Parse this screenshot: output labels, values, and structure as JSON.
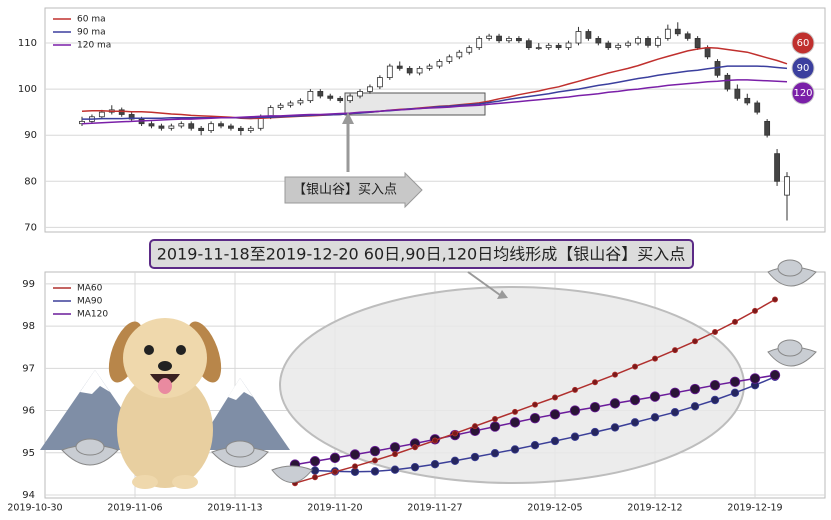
{
  "chart_data": [
    {
      "type": "candlestick",
      "annotation": "【银山谷】买入点",
      "ylim": [
        69,
        117.6
      ],
      "yticks": [
        70,
        80,
        90,
        100,
        110
      ],
      "grid": true,
      "legend": "upper left",
      "candles": [
        [
          92.5,
          94,
          92,
          93
        ],
        [
          93,
          94.5,
          92.5,
          94
        ],
        [
          94,
          95.5,
          93.5,
          95
        ],
        [
          95,
          96.5,
          94.5,
          95.5
        ],
        [
          95.5,
          96,
          94,
          94.5
        ],
        [
          94.5,
          95,
          93,
          93.5
        ],
        [
          93.5,
          94,
          92,
          92.5
        ],
        [
          92.5,
          93,
          91.5,
          92
        ],
        [
          92,
          92.5,
          91,
          91.5
        ],
        [
          91.5,
          92.5,
          91,
          92
        ],
        [
          92,
          93,
          91.5,
          92.5
        ],
        [
          92.5,
          93,
          91,
          91.5
        ],
        [
          91.5,
          92,
          90,
          91
        ],
        [
          91,
          93,
          90.5,
          92.5
        ],
        [
          92.5,
          93,
          91.5,
          92
        ],
        [
          92,
          92.5,
          91,
          91.5
        ],
        [
          91.5,
          92,
          90,
          91
        ],
        [
          91,
          92,
          90.5,
          91.5
        ],
        [
          91.5,
          94.5,
          91,
          94
        ],
        [
          94,
          96.5,
          93.5,
          96
        ],
        [
          96,
          97,
          95.5,
          96.5
        ],
        [
          96.5,
          97.5,
          96,
          97
        ],
        [
          97,
          98,
          96.5,
          97.5
        ],
        [
          97.5,
          100,
          97,
          99.5
        ],
        [
          99.5,
          100,
          98,
          98.5
        ],
        [
          98.5,
          99,
          97.5,
          98
        ],
        [
          98,
          98.5,
          97,
          97.5
        ],
        [
          97.5,
          99,
          97,
          98.5
        ],
        [
          98.5,
          100,
          98,
          99.5
        ],
        [
          99.5,
          101,
          99,
          100.5
        ],
        [
          100.5,
          103,
          100,
          102.5
        ],
        [
          102.5,
          105.5,
          102,
          105
        ],
        [
          105,
          106,
          104,
          104.5
        ],
        [
          104.5,
          105,
          103,
          103.5
        ],
        [
          103.5,
          105,
          103,
          104.5
        ],
        [
          104.5,
          105.5,
          104,
          105
        ],
        [
          105,
          106.5,
          104.5,
          106
        ],
        [
          106,
          107.5,
          105.5,
          107
        ],
        [
          107,
          108.5,
          106.5,
          108
        ],
        [
          108,
          109.5,
          107.5,
          109
        ],
        [
          109,
          111.5,
          108.5,
          111
        ],
        [
          111,
          112,
          110.5,
          111.5
        ],
        [
          111.5,
          112,
          110,
          110.5
        ],
        [
          110.5,
          111.5,
          110,
          111
        ],
        [
          111,
          111.5,
          110,
          110.5
        ],
        [
          110.5,
          111,
          108.5,
          109
        ],
        [
          109,
          110,
          108.5,
          109
        ],
        [
          109,
          110,
          108.5,
          109.5
        ],
        [
          109.5,
          110,
          108.5,
          109
        ],
        [
          109,
          110.5,
          108.5,
          110
        ],
        [
          110,
          113.5,
          109.5,
          112.5
        ],
        [
          112.5,
          113,
          110.5,
          111
        ],
        [
          111,
          111.5,
          109.5,
          110
        ],
        [
          110,
          110.5,
          108.5,
          109
        ],
        [
          109,
          110,
          108.5,
          109.5
        ],
        [
          109.5,
          110.5,
          109,
          110
        ],
        [
          110,
          111.5,
          109.5,
          111
        ],
        [
          111,
          111.5,
          109,
          109.5
        ],
        [
          109.5,
          111.5,
          109,
          111
        ],
        [
          111,
          114,
          110.5,
          113
        ],
        [
          113,
          114.5,
          111.5,
          112
        ],
        [
          112,
          112.5,
          110.5,
          111
        ],
        [
          111,
          111.5,
          108.5,
          109
        ],
        [
          109,
          109.5,
          106.5,
          107
        ],
        [
          106,
          106.5,
          102.5,
          103
        ],
        [
          103,
          103.5,
          99.5,
          100
        ],
        [
          100,
          101,
          97.5,
          98
        ],
        [
          98,
          99,
          96.5,
          97
        ],
        [
          97,
          97.5,
          94.5,
          95
        ],
        [
          93,
          93.5,
          89.5,
          90
        ],
        [
          86,
          87,
          79,
          80
        ],
        [
          77,
          82,
          71.5,
          81
        ]
      ],
      "series": [
        {
          "name": "60 ma",
          "tag": "60",
          "color": "#c0302e",
          "values": [
            95.2,
            95.3,
            95.3,
            95.2,
            95.2,
            95.1,
            95.1,
            95.0,
            94.8,
            94.6,
            94.5,
            94.3,
            94.2,
            94.1,
            94.0,
            93.9,
            93.7,
            93.6,
            93.7,
            93.8,
            93.9,
            94.0,
            94.1,
            94.2,
            94.3,
            94.4,
            94.5,
            94.7,
            94.9,
            95.0,
            95.2,
            95.4,
            95.6,
            95.7,
            95.9,
            96.1,
            96.3,
            96.4,
            96.6,
            96.8,
            97.0,
            97.4,
            97.9,
            98.3,
            98.8,
            99.2,
            99.6,
            100.1,
            100.5,
            101.1,
            101.7,
            102.3,
            102.9,
            103.5,
            104.0,
            104.5,
            105.1,
            105.8,
            106.5,
            107.1,
            107.7,
            108.3,
            108.7,
            109.0,
            108.9,
            108.6,
            108.3,
            108.0,
            107.4,
            106.8,
            106.2,
            105.5
          ]
        },
        {
          "name": "90 ma",
          "tag": "90",
          "color": "#3b3f9e",
          "values": [
            93.5,
            93.5,
            93.6,
            93.6,
            93.6,
            93.7,
            93.7,
            93.7,
            93.7,
            93.8,
            93.8,
            93.8,
            93.8,
            93.8,
            93.8,
            93.8,
            93.8,
            93.8,
            93.9,
            93.9,
            94.0,
            94.1,
            94.2,
            94.3,
            94.4,
            94.4,
            94.5,
            94.7,
            94.8,
            95.0,
            95.2,
            95.3,
            95.5,
            95.7,
            95.8,
            96.0,
            96.2,
            96.3,
            96.5,
            96.6,
            96.8,
            97.1,
            97.4,
            97.8,
            98.1,
            98.4,
            98.7,
            99.0,
            99.4,
            99.7,
            100.0,
            100.4,
            100.8,
            101.1,
            101.5,
            101.9,
            102.3,
            102.6,
            103.0,
            103.3,
            103.6,
            103.9,
            104.1,
            104.4,
            104.7,
            105.0,
            105.0,
            105.0,
            105.0,
            104.9,
            104.7,
            104.5
          ]
        },
        {
          "name": "120 ma",
          "tag": "120",
          "color": "#7a1fa8",
          "values": [
            92.5,
            92.6,
            92.7,
            92.8,
            92.9,
            93.0,
            93.1,
            93.2,
            93.3,
            93.4,
            93.5,
            93.5,
            93.6,
            93.7,
            93.8,
            93.8,
            93.9,
            94.0,
            94.1,
            94.2,
            94.2,
            94.3,
            94.4,
            94.5,
            94.5,
            94.6,
            94.7,
            94.8,
            95.0,
            95.1,
            95.2,
            95.4,
            95.5,
            95.6,
            95.8,
            95.9,
            96.0,
            96.1,
            96.3,
            96.4,
            96.5,
            96.7,
            96.9,
            97.1,
            97.3,
            97.5,
            97.7,
            97.9,
            98.1,
            98.3,
            98.6,
            98.8,
            99.0,
            99.3,
            99.5,
            99.8,
            100.0,
            100.3,
            100.5,
            100.8,
            101.0,
            101.2,
            101.4,
            101.6,
            101.7,
            101.9,
            102.0,
            102.0,
            101.9,
            101.8,
            101.7,
            101.6
          ]
        }
      ]
    },
    {
      "type": "line",
      "title": "2019-11-18至2019-12-20 60日,90日,120日均线形成【银山谷】买入点",
      "ylim": [
        93.93,
        99.28
      ],
      "yticks": [
        94,
        95,
        96,
        97,
        98,
        99
      ],
      "grid": true,
      "legend": "upper left",
      "xticks": [
        "2019-10-30",
        "2019-11-06",
        "2019-11-13",
        "2019-11-20",
        "2019-11-27",
        "2019-12-05",
        "2019-12-12",
        "2019-12-19"
      ],
      "x": [
        "2019-11-18",
        "2019-11-19",
        "2019-11-20",
        "2019-11-21",
        "2019-11-22",
        "2019-11-25",
        "2019-11-26",
        "2019-11-27",
        "2019-11-28",
        "2019-11-29",
        "2019-12-02",
        "2019-12-03",
        "2019-12-04",
        "2019-12-05",
        "2019-12-06",
        "2019-12-09",
        "2019-12-10",
        "2019-12-11",
        "2019-12-12",
        "2019-12-13",
        "2019-12-16",
        "2019-12-17",
        "2019-12-18",
        "2019-12-19",
        "2019-12-20"
      ],
      "series": [
        {
          "name": "MA60",
          "color": "#b0302e",
          "values": [
            94.28,
            94.42,
            94.55,
            94.68,
            94.82,
            94.97,
            95.13,
            95.29,
            95.46,
            95.63,
            95.8,
            95.97,
            96.14,
            96.31,
            96.49,
            96.67,
            96.85,
            97.04,
            97.23,
            97.43,
            97.64,
            97.86,
            98.1,
            98.36,
            98.63
          ]
        },
        {
          "name": "MA90",
          "color": "#3b3f98",
          "values": [
            94.62,
            94.58,
            94.56,
            94.55,
            94.56,
            94.6,
            94.66,
            94.73,
            94.81,
            94.9,
            94.99,
            95.08,
            95.18,
            95.28,
            95.38,
            95.49,
            95.6,
            95.72,
            95.84,
            95.96,
            96.1,
            96.25,
            96.42,
            96.6,
            96.8
          ]
        },
        {
          "name": "MA120",
          "color": "#6a1b9a",
          "values": [
            94.72,
            94.8,
            94.88,
            94.96,
            95.04,
            95.13,
            95.22,
            95.32,
            95.42,
            95.52,
            95.62,
            95.72,
            95.82,
            95.91,
            96.0,
            96.08,
            96.17,
            96.25,
            96.33,
            96.42,
            96.51,
            96.6,
            96.68,
            96.76,
            96.84
          ]
        }
      ]
    }
  ]
}
